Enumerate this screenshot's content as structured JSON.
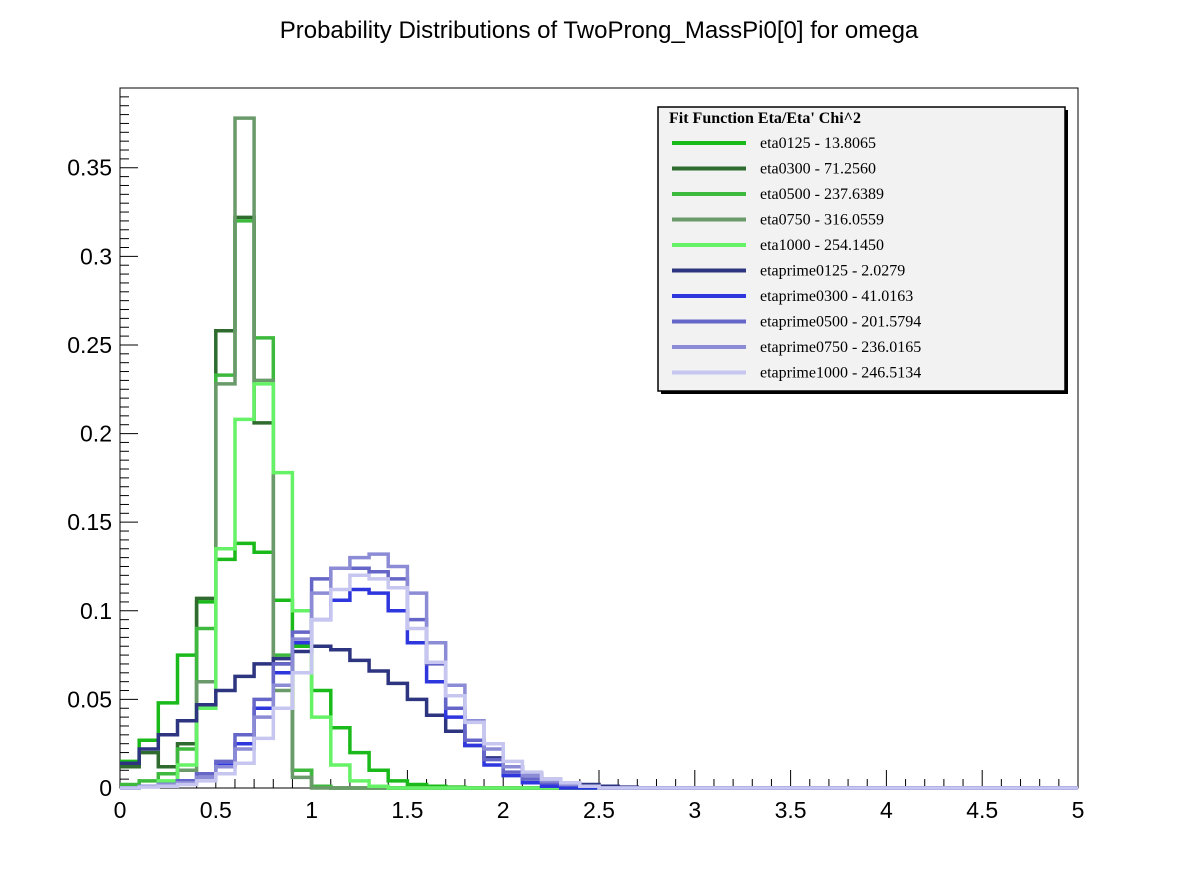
{
  "chart_data": {
    "type": "line",
    "style": "step-histogram",
    "title": "Probability Distributions of TwoProng_MassPi0[0] for omega",
    "xlabel": "",
    "ylabel": "",
    "xlim": [
      0,
      5
    ],
    "ylim": [
      0,
      0.395
    ],
    "bin_width": 0.1,
    "x_ticks": [
      "0",
      "0.5",
      "1",
      "1.5",
      "2",
      "2.5",
      "3",
      "3.5",
      "4",
      "4.5",
      "5"
    ],
    "y_ticks": [
      "0",
      "0.05",
      "0.1",
      "0.15",
      "0.2",
      "0.25",
      "0.3",
      "0.35"
    ],
    "grid": false,
    "legend_position": "top-right",
    "legend_title": "Fit Function Eta/Eta' Chi^2",
    "series": [
      {
        "name": "eta0125 - 13.8065",
        "color": "#1aba1a",
        "values": [
          0.015,
          0.027,
          0.048,
          0.075,
          0.105,
          0.129,
          0.138,
          0.133,
          0.106,
          0.08,
          0.055,
          0.034,
          0.02,
          0.01,
          0.004,
          0.002,
          0.001,
          0.0005,
          0,
          0,
          0,
          0,
          0,
          0,
          0,
          0,
          0,
          0,
          0,
          0,
          0,
          0,
          0,
          0,
          0,
          0,
          0,
          0,
          0,
          0,
          0,
          0,
          0,
          0,
          0,
          0,
          0,
          0,
          0,
          0
        ]
      },
      {
        "name": "eta0300 - 71.2560",
        "color": "#2f6b2f",
        "values": [
          0.012,
          0.02,
          0.012,
          0.025,
          0.107,
          0.258,
          0.322,
          0.206,
          0.07,
          0.01,
          0.001,
          0,
          0,
          0,
          0,
          0,
          0,
          0,
          0,
          0,
          0,
          0,
          0,
          0,
          0,
          0,
          0,
          0,
          0,
          0,
          0,
          0,
          0,
          0,
          0,
          0,
          0,
          0,
          0,
          0,
          0,
          0,
          0,
          0,
          0,
          0,
          0,
          0,
          0,
          0
        ]
      },
      {
        "name": "eta0500 - 237.6389",
        "color": "#3dba3d",
        "values": [
          0.002,
          0.004,
          0.008,
          0.022,
          0.09,
          0.233,
          0.32,
          0.254,
          0.075,
          0.01,
          0.001,
          0,
          0,
          0,
          0,
          0,
          0,
          0,
          0,
          0,
          0,
          0,
          0,
          0,
          0,
          0,
          0,
          0,
          0,
          0,
          0,
          0,
          0,
          0,
          0,
          0,
          0,
          0,
          0,
          0,
          0,
          0,
          0,
          0,
          0,
          0,
          0,
          0,
          0,
          0
        ]
      },
      {
        "name": "eta0750 - 316.0559",
        "color": "#6a9a6a",
        "values": [
          0,
          0.001,
          0.002,
          0.01,
          0.06,
          0.228,
          0.378,
          0.23,
          0.055,
          0.006,
          0,
          0,
          0,
          0,
          0,
          0,
          0,
          0,
          0,
          0,
          0,
          0,
          0,
          0,
          0,
          0,
          0,
          0,
          0,
          0,
          0,
          0,
          0,
          0,
          0,
          0,
          0,
          0,
          0,
          0,
          0,
          0,
          0,
          0,
          0,
          0,
          0,
          0,
          0,
          0
        ]
      },
      {
        "name": "eta1000 - 254.1450",
        "color": "#66f266",
        "values": [
          0,
          0.001,
          0.004,
          0.013,
          0.045,
          0.135,
          0.208,
          0.228,
          0.178,
          0.1,
          0.04,
          0.013,
          0.004,
          0.001,
          0,
          0,
          0,
          0,
          0,
          0,
          0,
          0,
          0,
          0,
          0,
          0,
          0,
          0,
          0,
          0,
          0,
          0,
          0,
          0,
          0,
          0,
          0,
          0,
          0,
          0,
          0,
          0,
          0,
          0,
          0,
          0,
          0,
          0,
          0,
          0
        ]
      },
      {
        "name": "etaprime0125 - 2.0279",
        "color": "#2e3580",
        "values": [
          0.014,
          0.022,
          0.03,
          0.038,
          0.047,
          0.055,
          0.063,
          0.07,
          0.073,
          0.077,
          0.08,
          0.078,
          0.072,
          0.066,
          0.059,
          0.05,
          0.041,
          0.032,
          0.024,
          0.017,
          0.012,
          0.008,
          0.005,
          0.003,
          0.002,
          0.001,
          0.0005,
          0,
          0,
          0,
          0,
          0,
          0,
          0,
          0,
          0,
          0,
          0,
          0,
          0,
          0,
          0,
          0,
          0,
          0,
          0,
          0,
          0,
          0,
          0
        ]
      },
      {
        "name": "etaprime0300 - 41.0163",
        "color": "#2e36de",
        "values": [
          0,
          0.001,
          0.002,
          0.004,
          0.008,
          0.013,
          0.025,
          0.045,
          0.065,
          0.082,
          0.095,
          0.106,
          0.112,
          0.11,
          0.1,
          0.082,
          0.06,
          0.04,
          0.024,
          0.013,
          0.007,
          0.003,
          0.001,
          0,
          0,
          0,
          0,
          0,
          0,
          0,
          0,
          0,
          0,
          0,
          0,
          0,
          0,
          0,
          0,
          0,
          0,
          0,
          0,
          0,
          0,
          0,
          0,
          0,
          0,
          0
        ]
      },
      {
        "name": "etaprime0500 - 201.5794",
        "color": "#6666c8",
        "values": [
          0,
          0.001,
          0.002,
          0.004,
          0.008,
          0.015,
          0.03,
          0.05,
          0.07,
          0.088,
          0.118,
          0.124,
          0.124,
          0.122,
          0.118,
          0.095,
          0.07,
          0.045,
          0.027,
          0.016,
          0.009,
          0.005,
          0.003,
          0.002,
          0.001,
          0,
          0,
          0,
          0,
          0,
          0,
          0,
          0,
          0,
          0,
          0,
          0,
          0,
          0,
          0,
          0,
          0,
          0,
          0,
          0,
          0,
          0,
          0,
          0,
          0
        ]
      },
      {
        "name": "etaprime0750 - 236.0165",
        "color": "#8c8cd6",
        "values": [
          0,
          0.001,
          0.002,
          0.003,
          0.006,
          0.012,
          0.022,
          0.04,
          0.058,
          0.084,
          0.11,
          0.124,
          0.13,
          0.132,
          0.125,
          0.11,
          0.082,
          0.058,
          0.038,
          0.022,
          0.012,
          0.007,
          0.004,
          0.002,
          0.001,
          0,
          0,
          0,
          0,
          0,
          0,
          0,
          0,
          0,
          0,
          0,
          0,
          0,
          0,
          0,
          0,
          0,
          0,
          0,
          0,
          0,
          0,
          0,
          0,
          0
        ]
      },
      {
        "name": "etaprime1000 - 246.5134",
        "color": "#c6c6f0",
        "values": [
          0,
          0.0005,
          0.001,
          0.002,
          0.004,
          0.008,
          0.014,
          0.028,
          0.045,
          0.065,
          0.095,
          0.112,
          0.12,
          0.118,
          0.113,
          0.09,
          0.071,
          0.052,
          0.037,
          0.025,
          0.015,
          0.009,
          0.005,
          0.003,
          0.001,
          0,
          0,
          0,
          0,
          0,
          0,
          0,
          0,
          0,
          0,
          0,
          0,
          0,
          0,
          0,
          0,
          0,
          0,
          0,
          0,
          0,
          0,
          0,
          0,
          0
        ]
      }
    ]
  }
}
